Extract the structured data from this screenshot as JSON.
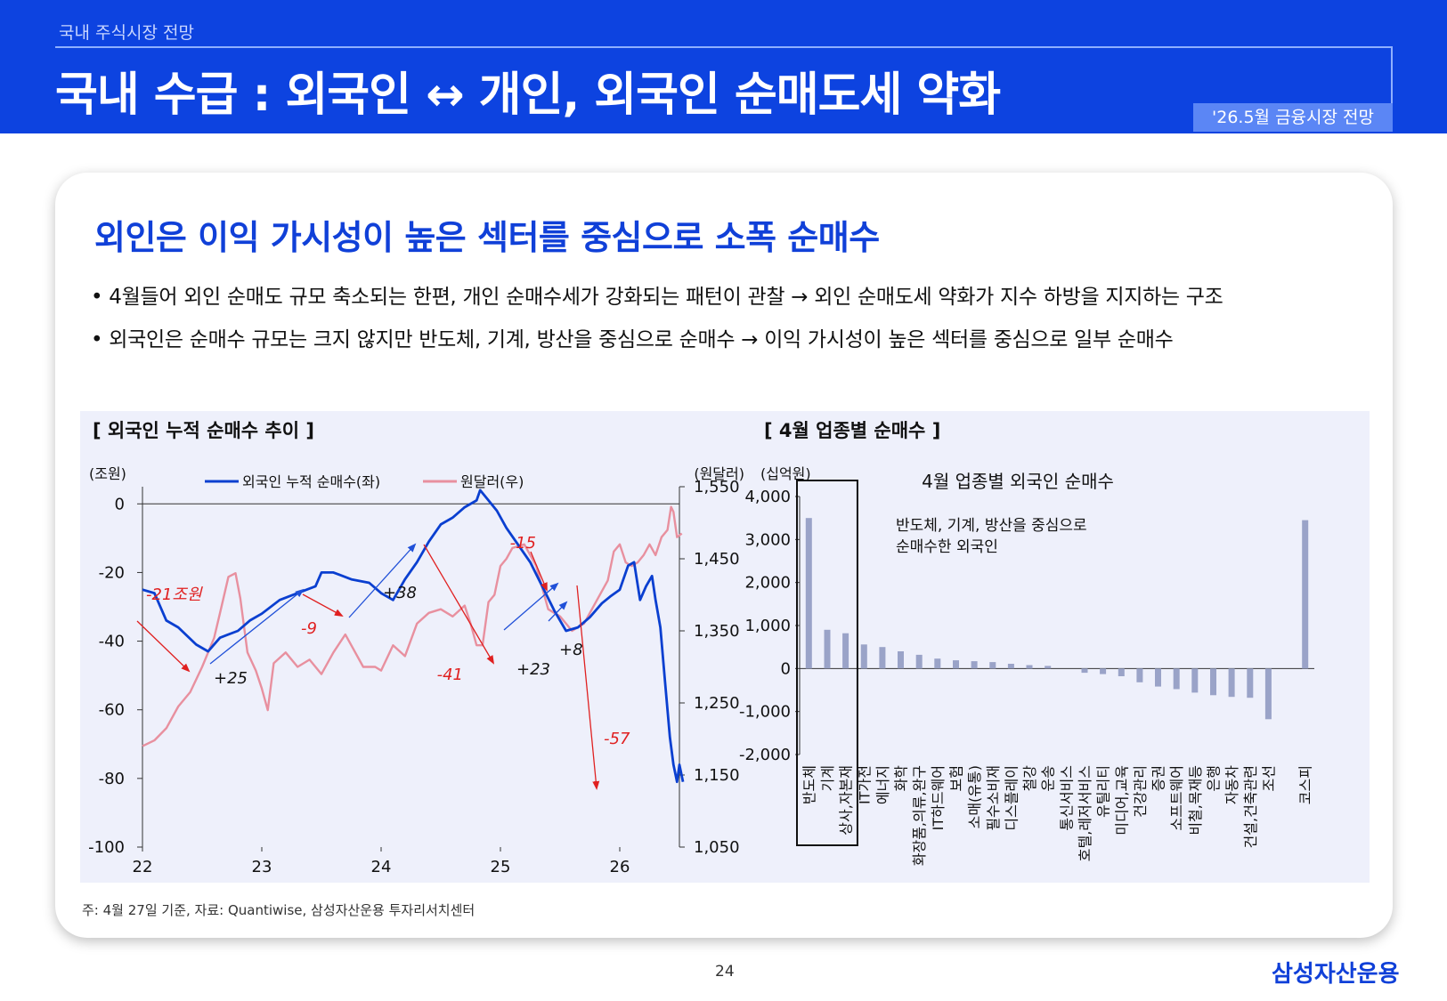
{
  "header": {
    "breadcrumb": "국내 주식시장 전망",
    "title": "국내 수급 : 외국인 ↔ 개인, 외국인 순매도세 약화",
    "badge": "'26.5월 금융시장 전망"
  },
  "headline": "외인은 이익 가시성이 높은 섹터를 중심으로 소폭 순매수",
  "bullets": [
    "• 4월들어 외인 순매도 규모 축소되는 한편, 개인 순매수세가 강화되는 패턴이 관찰 → 외인 순매도세 약화가 지수 하방을 지지하는 구조",
    "• 외국인은 순매수 규모는 크지 않지만 반도체, 기계, 방산을 중심으로 순매수 → 이익 가시성이 높은 섹터를 중심으로 일부 순매수"
  ],
  "footnote": "주: 4월 27일 기준, 자료: Quantiwise, 삼성자산운용 투자리서치센터",
  "page_number": "24",
  "brand": "삼성자산운용",
  "colors": {
    "primary_blue": "#0d43e0",
    "series_blue": "#0a3fd0",
    "series_pink": "#e8909f",
    "annotation_red": "#e02020",
    "bar": "#9aa3c8"
  },
  "chart_data": [
    {
      "type": "line",
      "title": "[ 외국인 누적 순매수 추이 ]",
      "left_unit": "(조원)",
      "right_unit": "(원달러)",
      "x_ticks": [
        "22",
        "23",
        "24",
        "25",
        "26"
      ],
      "y_left_ticks": [
        "0",
        "-20",
        "-40",
        "-60",
        "-80",
        "-100"
      ],
      "y_left_lim": [
        -100,
        5
      ],
      "y_right_ticks": [
        "1,550",
        "1,450",
        "1,350",
        "1,250",
        "1,150",
        "1,050"
      ],
      "y_right_lim": [
        1050,
        1550
      ],
      "x_lim": [
        2022.0,
        2026.5
      ],
      "series": [
        {
          "name": "외국인 누적 순매수(좌)",
          "axis": "left",
          "color": "#0a3fd0",
          "points": [
            [
              2022.0,
              -25
            ],
            [
              2022.1,
              -26
            ],
            [
              2022.2,
              -34
            ],
            [
              2022.3,
              -36
            ],
            [
              2022.45,
              -41
            ],
            [
              2022.55,
              -43
            ],
            [
              2022.65,
              -39
            ],
            [
              2022.8,
              -37
            ],
            [
              2022.9,
              -34
            ],
            [
              2023.0,
              -32
            ],
            [
              2023.15,
              -28
            ],
            [
              2023.3,
              -26
            ],
            [
              2023.45,
              -24
            ],
            [
              2023.5,
              -20
            ],
            [
              2023.6,
              -20
            ],
            [
              2023.75,
              -22
            ],
            [
              2023.9,
              -23
            ],
            [
              2024.0,
              -26
            ],
            [
              2024.1,
              -28
            ],
            [
              2024.2,
              -22
            ],
            [
              2024.3,
              -17
            ],
            [
              2024.4,
              -11
            ],
            [
              2024.5,
              -6
            ],
            [
              2024.6,
              -4
            ],
            [
              2024.7,
              -1
            ],
            [
              2024.8,
              1
            ],
            [
              2024.83,
              4
            ],
            [
              2024.9,
              1
            ],
            [
              2024.97,
              -2
            ],
            [
              2025.05,
              -7
            ],
            [
              2025.15,
              -12
            ],
            [
              2025.25,
              -17
            ],
            [
              2025.35,
              -24
            ],
            [
              2025.45,
              -31
            ],
            [
              2025.55,
              -37
            ],
            [
              2025.65,
              -36
            ],
            [
              2025.75,
              -33
            ],
            [
              2025.85,
              -29
            ],
            [
              2025.92,
              -27
            ],
            [
              2026.0,
              -25
            ],
            [
              2026.07,
              -18
            ],
            [
              2026.12,
              -17
            ],
            [
              2026.17,
              -28
            ],
            [
              2026.22,
              -24
            ],
            [
              2026.27,
              -21
            ],
            [
              2026.3,
              -28
            ],
            [
              2026.34,
              -36
            ],
            [
              2026.38,
              -52
            ],
            [
              2026.42,
              -68
            ],
            [
              2026.45,
              -76
            ],
            [
              2026.48,
              -81
            ],
            [
              2026.5,
              -76
            ],
            [
              2026.53,
              -81
            ]
          ]
        },
        {
          "name": "원달러(우)",
          "axis": "right",
          "color": "#e8909f",
          "points": [
            [
              2022.0,
              1190
            ],
            [
              2022.1,
              1198
            ],
            [
              2022.2,
              1215
            ],
            [
              2022.3,
              1245
            ],
            [
              2022.4,
              1265
            ],
            [
              2022.5,
              1300
            ],
            [
              2022.6,
              1340
            ],
            [
              2022.65,
              1375
            ],
            [
              2022.72,
              1425
            ],
            [
              2022.78,
              1430
            ],
            [
              2022.82,
              1395
            ],
            [
              2022.88,
              1320
            ],
            [
              2022.95,
              1295
            ],
            [
              2023.0,
              1270
            ],
            [
              2023.05,
              1240
            ],
            [
              2023.1,
              1305
            ],
            [
              2023.2,
              1320
            ],
            [
              2023.3,
              1300
            ],
            [
              2023.4,
              1310
            ],
            [
              2023.5,
              1290
            ],
            [
              2023.6,
              1320
            ],
            [
              2023.7,
              1345
            ],
            [
              2023.75,
              1330
            ],
            [
              2023.85,
              1300
            ],
            [
              2023.95,
              1300
            ],
            [
              2024.0,
              1295
            ],
            [
              2024.1,
              1330
            ],
            [
              2024.2,
              1315
            ],
            [
              2024.3,
              1360
            ],
            [
              2024.4,
              1375
            ],
            [
              2024.5,
              1380
            ],
            [
              2024.6,
              1370
            ],
            [
              2024.7,
              1385
            ],
            [
              2024.75,
              1360
            ],
            [
              2024.8,
              1330
            ],
            [
              2024.85,
              1330
            ],
            [
              2024.9,
              1390
            ],
            [
              2024.95,
              1400
            ],
            [
              2025.0,
              1440
            ],
            [
              2025.05,
              1450
            ],
            [
              2025.1,
              1465
            ],
            [
              2025.2,
              1470
            ],
            [
              2025.3,
              1440
            ],
            [
              2025.4,
              1380
            ],
            [
              2025.5,
              1370
            ],
            [
              2025.55,
              1360
            ],
            [
              2025.6,
              1350
            ],
            [
              2025.7,
              1360
            ],
            [
              2025.8,
              1390
            ],
            [
              2025.9,
              1420
            ],
            [
              2025.95,
              1460
            ],
            [
              2026.0,
              1470
            ],
            [
              2026.05,
              1445
            ],
            [
              2026.1,
              1440
            ],
            [
              2026.15,
              1445
            ],
            [
              2026.2,
              1455
            ],
            [
              2026.25,
              1470
            ],
            [
              2026.3,
              1455
            ],
            [
              2026.35,
              1480
            ],
            [
              2026.4,
              1490
            ],
            [
              2026.43,
              1522
            ],
            [
              2026.45,
              1515
            ],
            [
              2026.48,
              1480
            ],
            [
              2026.52,
              1485
            ]
          ]
        }
      ],
      "annotations": [
        {
          "label": "-21조원"
        },
        {
          "label": "+25"
        },
        {
          "label": "-9"
        },
        {
          "label": "+38"
        },
        {
          "label": "-41"
        },
        {
          "label": "+23"
        },
        {
          "label": "-15"
        },
        {
          "label": "+8"
        },
        {
          "label": "-57"
        }
      ]
    },
    {
      "type": "bar",
      "title": "[ 4월 업종별 순매수 ]",
      "subtitle": "4월 업종별 외국인 순매수",
      "unit": "(십억원)",
      "y_ticks": [
        "4,000",
        "3,000",
        "2,000",
        "1,000",
        "0",
        "-1,000",
        "-2,000"
      ],
      "ylim": [
        -2000,
        4000
      ],
      "callout": [
        "반도체, 기계, 방산을 중심으로",
        "순매수한 외국인"
      ],
      "categories": [
        "반도체",
        "기계",
        "상사,자본재",
        "IT가전",
        "에너지",
        "화학",
        "화장품,의류,완구",
        "IT하드웨어",
        "보험",
        "소매(유통)",
        "필수소비재",
        "디스플레이",
        "철강",
        "운송",
        "통신서비스",
        "호텔,레저서비스",
        "유틸리티",
        "미디어,교육",
        "건강관리",
        "증권",
        "소프트웨어",
        "비철,목재등",
        "은행",
        "자동차",
        "건설,건축관련",
        "조선",
        "",
        "코스피"
      ],
      "values": [
        3500,
        900,
        820,
        560,
        500,
        400,
        320,
        230,
        190,
        170,
        150,
        110,
        80,
        60,
        0,
        -100,
        -130,
        -180,
        -320,
        -420,
        -480,
        -560,
        -620,
        -660,
        -680,
        -1180,
        null,
        3450
      ]
    }
  ]
}
